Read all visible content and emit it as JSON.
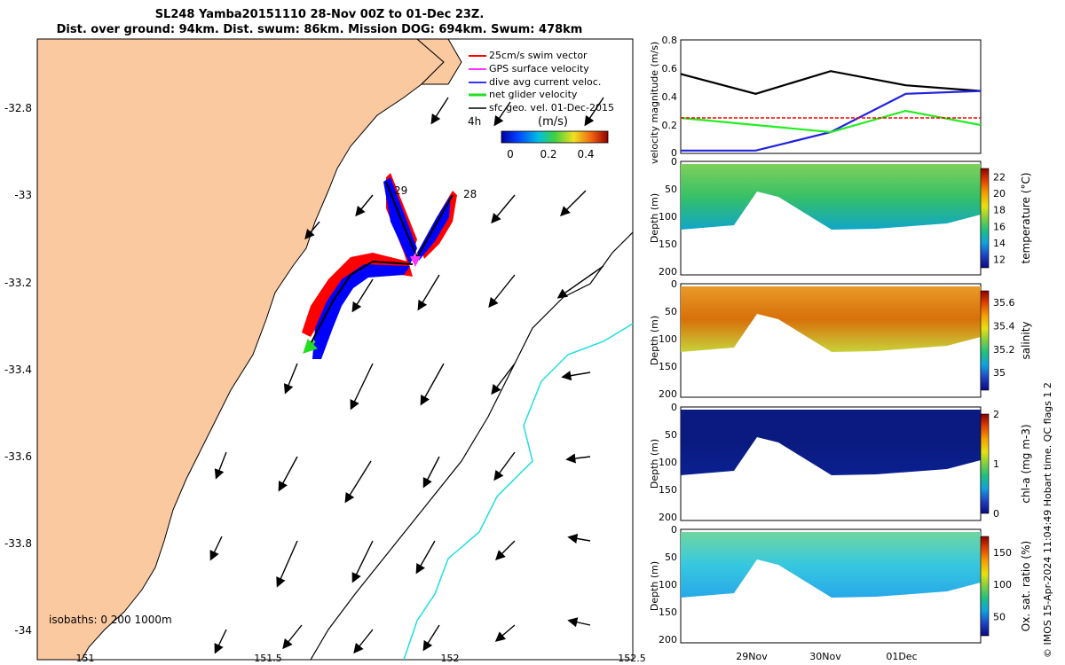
{
  "title": {
    "line1": "SL248 Yamba20151110 28-Nov 00Z to 01-Dec 23Z.",
    "line2": "Dist. over ground: 94km. Dist. swum: 86km. Mission DOG: 694km. Swum: 478km"
  },
  "map": {
    "lon_ticks": [
      "151",
      "151.5",
      "152",
      "152.5"
    ],
    "lat_ticks": [
      "-32.8",
      "-33",
      "-33.2",
      "-33.4",
      "-33.6",
      "-33.8",
      "-34"
    ],
    "legend": [
      {
        "label": "25cm/s swim vector",
        "color": "#ff0000"
      },
      {
        "label": "GPS surface velocity",
        "color": "#ff33ff"
      },
      {
        "label": "dive avg current veloc.",
        "color": "#3333ff"
      },
      {
        "label": "net glider velocity",
        "color": "#22dd22"
      },
      {
        "label": "sfc geo. vel. 01-Dec-2015",
        "color": "#000000"
      }
    ],
    "scale_label": "4h",
    "colorbar_unit": "(m/s)",
    "colorbar_ticks": [
      "0",
      "0.2",
      "0.4"
    ],
    "track_labels": [
      "29",
      "28"
    ],
    "isobaths_label": "isobaths: 0  200  1000m",
    "land_color": "#fbc9a0"
  },
  "right_axes": {
    "time_ticks": [
      "29Nov",
      "30Nov",
      "01Dec"
    ],
    "depth_ticks": [
      "0",
      "50",
      "100",
      "150",
      "200"
    ],
    "depth_label": "Depth (m)"
  },
  "chart_data": [
    {
      "type": "line",
      "ylabel": "velocity magnitude (m/s)",
      "ylim": [
        0,
        0.8
      ],
      "yticks": [
        "0",
        "0.2",
        "0.4",
        "0.6",
        "0.8"
      ],
      "x": [
        "28-Nov 00Z",
        "29-Nov 00Z",
        "30-Nov 00Z",
        "01-Dec 00Z",
        "01-Dec 23Z"
      ],
      "series": [
        {
          "color": "#000000",
          "values": [
            0.56,
            0.42,
            0.58,
            0.48,
            0.44
          ]
        },
        {
          "color": "#2222dd",
          "values": [
            0.02,
            0.02,
            0.15,
            0.42,
            0.44
          ]
        },
        {
          "color": "#22ee22",
          "values": [
            0.25,
            0.2,
            0.15,
            0.3,
            0.2
          ]
        },
        {
          "color": "#ff0000",
          "values": [
            0.25,
            0.25,
            0.25,
            0.25,
            0.25
          ]
        }
      ]
    },
    {
      "type": "heatmap",
      "cbar_label": "temperature (°C)",
      "cbar_ticks": [
        "22",
        "20",
        "18",
        "16",
        "14",
        "12"
      ],
      "clim": [
        11,
        23
      ],
      "gradient": [
        "#8b0000",
        "#e04000",
        "#f5a000",
        "#e8e010",
        "#7fd040",
        "#20c080",
        "#10a0e0",
        "#2040c0",
        "#0a0a80"
      ],
      "fill": [
        "#7ed05a",
        "#36c067",
        "#10a6c8"
      ]
    },
    {
      "type": "heatmap",
      "cbar_label": "salinity",
      "cbar_ticks": [
        "35.6",
        "35.4",
        "35.2",
        "35"
      ],
      "clim": [
        34.85,
        35.7
      ],
      "gradient": [
        "#8b0000",
        "#e04000",
        "#f5a000",
        "#e8e010",
        "#7fd040",
        "#20c080",
        "#10a0e0",
        "#2040c0",
        "#0a0a80"
      ],
      "fill": [
        "#e89a28",
        "#d8700a",
        "#c8d23a"
      ]
    },
    {
      "type": "heatmap",
      "cbar_label": "chl-a (mg m-3)",
      "cbar_ticks": [
        "2",
        "1",
        "0"
      ],
      "clim": [
        0,
        2
      ],
      "gradient": [
        "#8b0000",
        "#e04000",
        "#f5a000",
        "#e8e010",
        "#7fd040",
        "#20c080",
        "#10a0e0",
        "#2040c0",
        "#0a0a80"
      ],
      "fill": [
        "#0a1a80",
        "#0a1a80",
        "#0a2090"
      ]
    },
    {
      "type": "heatmap",
      "cbar_label": "Ox. sat. ratio (%)",
      "cbar_ticks": [
        "150",
        "100",
        "50"
      ],
      "clim": [
        20,
        175
      ],
      "gradient": [
        "#8b0000",
        "#e04000",
        "#f5a000",
        "#e8e010",
        "#7fd040",
        "#20c080",
        "#10a0e0",
        "#2040c0",
        "#0a0a80"
      ],
      "fill": [
        "#6fd6a0",
        "#36c8e0",
        "#28a8e8"
      ]
    }
  ],
  "footer_note": "© IMOS 15-Apr-2024 11:04:49 Hobart time. QC flags 1  2"
}
